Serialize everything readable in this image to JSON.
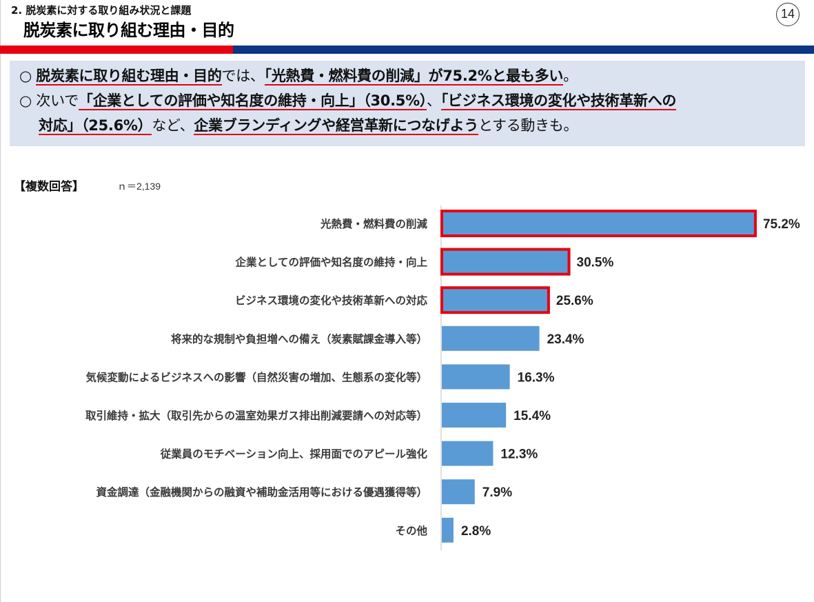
{
  "header": {
    "section": "2. 脱炭素に対する取り組み状況と課題",
    "title": "脱炭素に取り組む理由・目的",
    "page_number": "14"
  },
  "colors": {
    "accent_red": "#e60012",
    "accent_blue": "#0c3584",
    "bar": "#5b9bd5",
    "summary_bg": "#dbe3f1"
  },
  "summary": {
    "line1": {
      "bullet": "○",
      "a": "脱炭素に取り組む理由・目的",
      "b": "では、",
      "c": "「光熱費・燃料費の削減」が75.2%と最も多い",
      "d": "。"
    },
    "line2": {
      "bullet": "○",
      "a": "次いで",
      "b": "「企業としての評価や知名度の維持・向上」（30.5%）",
      "c": "、",
      "d": "「ビジネス環境の変化や技術革新への"
    },
    "line3": {
      "a": "対応」（25.6%）",
      "b": "など、",
      "c": "企業ブランディングや経営革新につなげよう",
      "d": "とする動きも。"
    }
  },
  "note": {
    "label": "【複数回答】",
    "n": "ｎ＝2,139"
  },
  "chart_data": {
    "type": "bar",
    "orientation": "horizontal",
    "categories": [
      "光熱費・燃料費の削減",
      "企業としての評価や知名度の維持・向上",
      "ビジネス環境の変化や技術革新への対応",
      "将来的な規制や負担増への備え（炭素賦課金導入等）",
      "気候変動によるビジネスへの影響（自然災害の増加、生態系の変化等）",
      "取引維持・拡大（取引先からの温室効果ガス排出削減要請への対応等）",
      "従業員のモチベーション向上、採用面でのアピール強化",
      "資金調達（金融機関からの融資や補助金活用等における優遇獲得等）",
      "その他"
    ],
    "values": [
      75.2,
      30.5,
      25.6,
      23.4,
      16.3,
      15.4,
      12.3,
      7.9,
      2.8
    ],
    "value_labels": [
      "75.2%",
      "30.5%",
      "25.6%",
      "23.4%",
      "16.3%",
      "15.4%",
      "12.3%",
      "7.9%",
      "2.8%"
    ],
    "highlighted": [
      0,
      1,
      2
    ],
    "xlim": [
      0,
      100
    ],
    "grid": false
  }
}
